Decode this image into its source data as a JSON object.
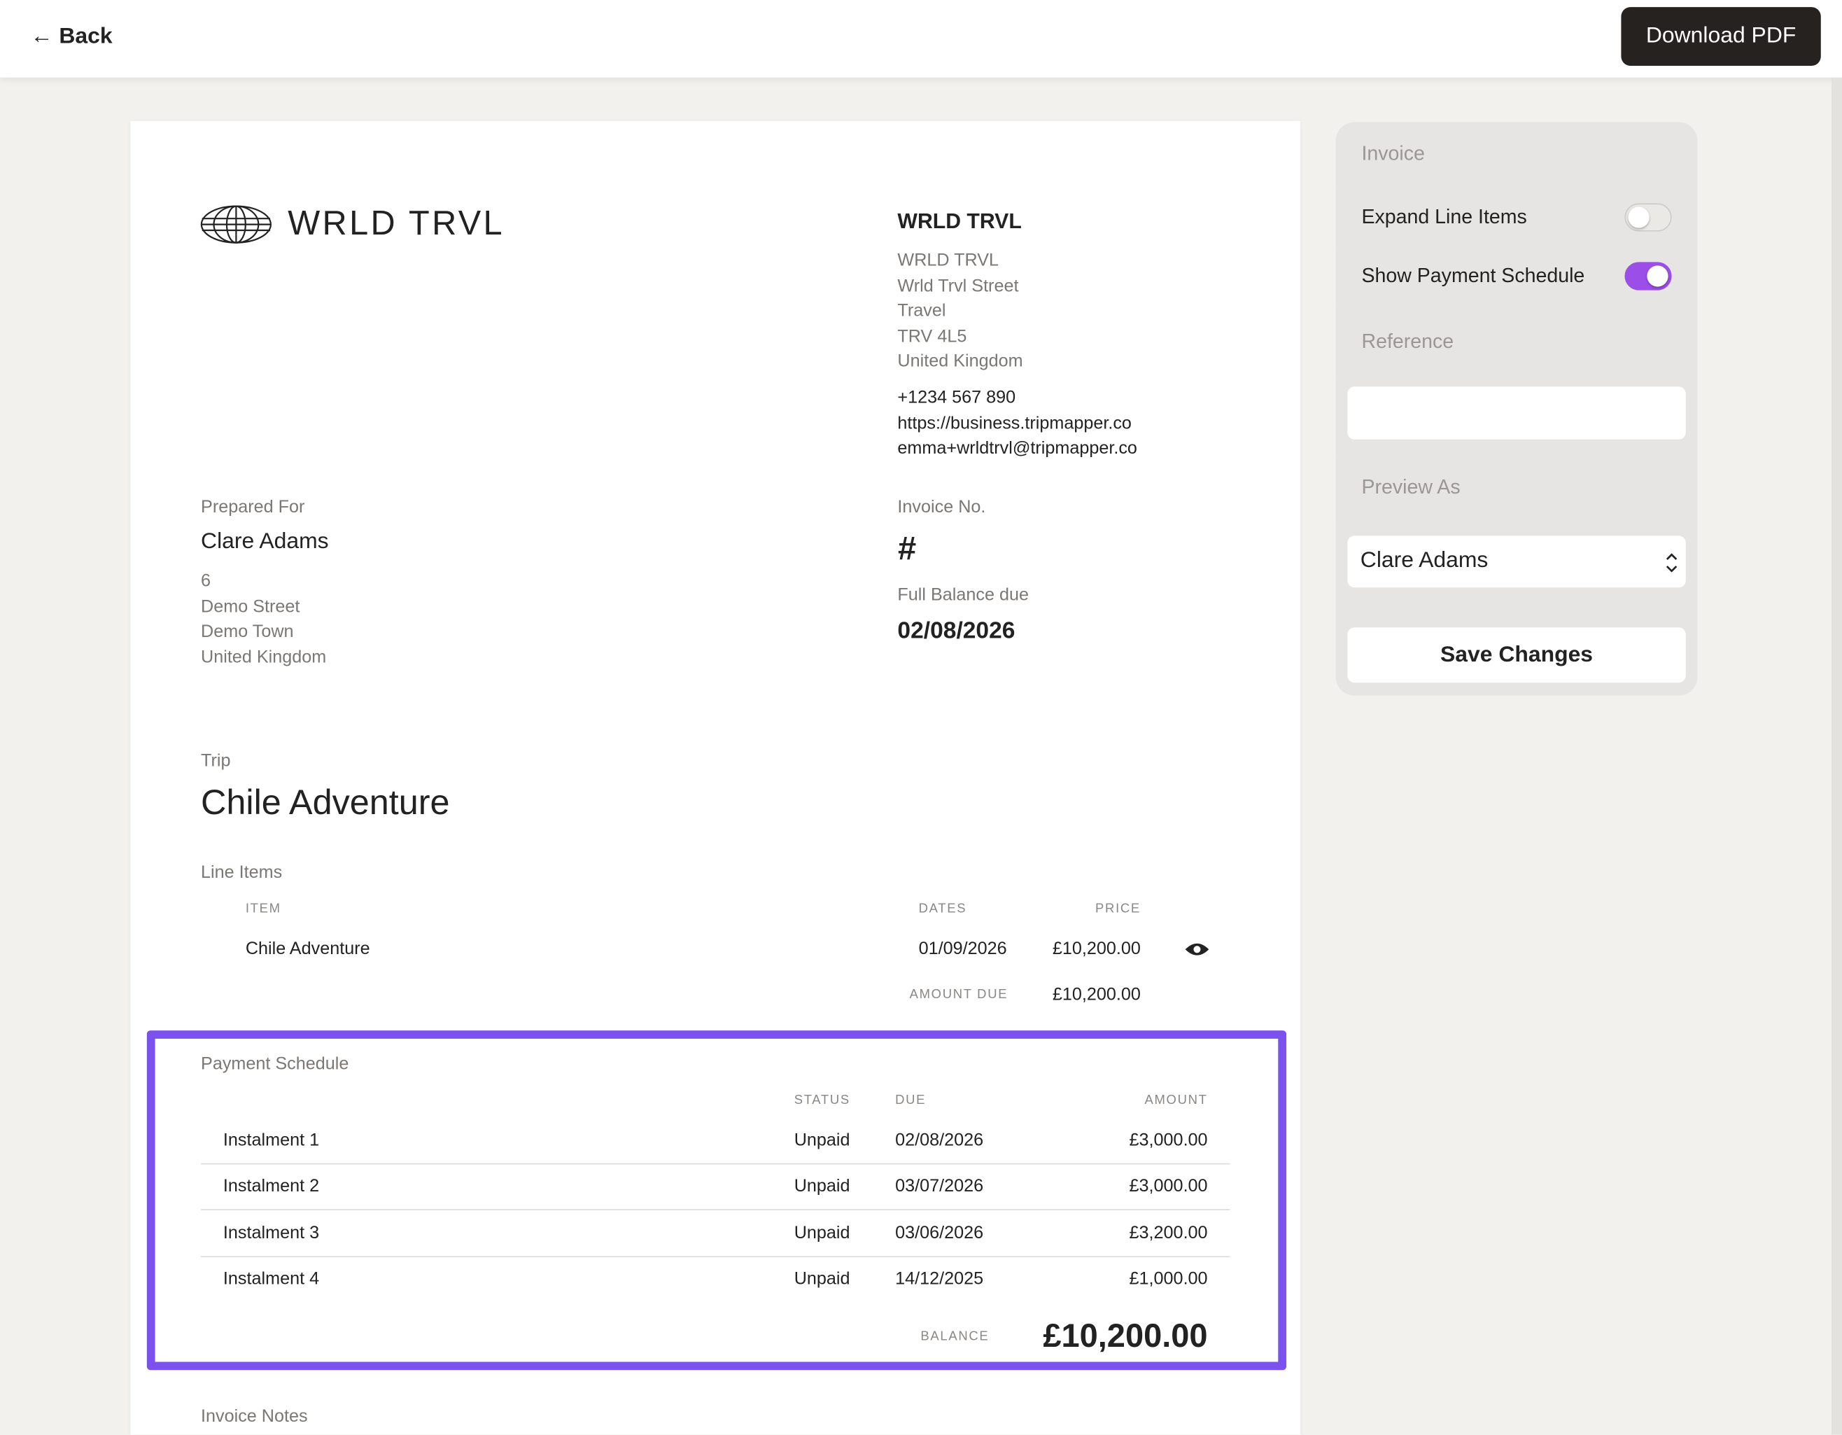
{
  "header": {
    "back": "Back",
    "download": "Download PDF"
  },
  "invoice": {
    "brand": "WRLD TRVL",
    "company": {
      "name": "WRLD TRVL",
      "address": [
        "WRLD TRVL",
        "Wrld Trvl Street",
        "Travel",
        "TRV 4L5",
        "United Kingdom"
      ],
      "contact": [
        "+1234 567 890",
        "https://business.tripmapper.co",
        "emma+wrldtrvl@tripmapper.co"
      ]
    },
    "prepared_for": {
      "label": "Prepared For",
      "name": "Clare Adams",
      "address": [
        "6",
        "Demo Street",
        "Demo Town",
        "United Kingdom"
      ]
    },
    "invoice_no": {
      "label": "Invoice No.",
      "value": "#"
    },
    "balance_due": {
      "label": "Full Balance due",
      "value": "02/08/2026"
    },
    "trip": {
      "label": "Trip",
      "name": "Chile Adventure"
    },
    "line_items": {
      "label": "Line Items",
      "headers": [
        "ITEM",
        "DATES",
        "PRICE"
      ],
      "rows": [
        [
          "Chile Adventure",
          "01/09/2026",
          "£10,200.00"
        ]
      ],
      "amount_due_label": "AMOUNT DUE",
      "amount_due": "£10,200.00"
    },
    "payment_schedule": {
      "label": "Payment Schedule",
      "headers": [
        "STATUS",
        "DUE",
        "AMOUNT"
      ],
      "rows": [
        [
          "Instalment 1",
          "Unpaid",
          "02/08/2026",
          "£3,000.00"
        ],
        [
          "Instalment 2",
          "Unpaid",
          "03/07/2026",
          "£3,000.00"
        ],
        [
          "Instalment 3",
          "Unpaid",
          "03/06/2026",
          "£3,200.00"
        ],
        [
          "Instalment 4",
          "Unpaid",
          "14/12/2025",
          "£1,000.00"
        ]
      ],
      "balance_label": "BALANCE",
      "balance": "£10,200.00"
    },
    "notes_label": "Invoice Notes"
  },
  "sidebar": {
    "invoice": "Invoice",
    "expand": "Expand Line Items",
    "show_schedule": "Show Payment Schedule",
    "reference": "Reference",
    "preview_as": "Preview As",
    "preview_value": "Clare Adams",
    "save": "Save Changes"
  }
}
